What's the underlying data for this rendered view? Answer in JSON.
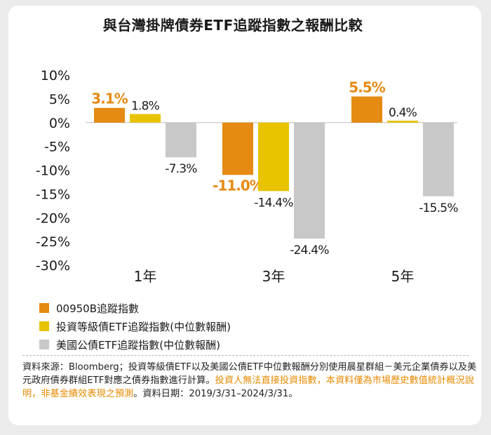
{
  "title": "與台灣掛牌債券ETF追蹤指數之報酬比較",
  "chart_data": {
    "type": "bar",
    "categories": [
      "1年",
      "3年",
      "5年"
    ],
    "ylim": [
      -30,
      10
    ],
    "yticks": [
      "10%",
      "5%",
      "0%",
      "-5%",
      "-10%",
      "-15%",
      "-20%",
      "-25%",
      "-30%"
    ],
    "ytick_values": [
      10,
      5,
      0,
      -5,
      -10,
      -15,
      -20,
      -25,
      -30
    ],
    "series": [
      {
        "name": "00950B追蹤指數",
        "color": "#e58a12",
        "values": [
          3.1,
          -11.0,
          5.5
        ],
        "labels": [
          "3.1%",
          "-11.0%",
          "5.5%"
        ],
        "highlight": true
      },
      {
        "name": "投資等級債ETF追蹤指數(中位數報酬)",
        "color": "#e8c300",
        "values": [
          1.8,
          -14.4,
          0.4
        ],
        "labels": [
          "1.8%",
          "-14.4%",
          "0.4%"
        ],
        "highlight": false
      },
      {
        "name": "美國公債ETF追蹤指數(中位數報酬)",
        "color": "#c8c8c8",
        "values": [
          -7.3,
          -24.4,
          -15.5
        ],
        "labels": [
          "-7.3%",
          "-24.4%",
          "-15.5%"
        ],
        "highlight": false
      }
    ]
  },
  "footnote": {
    "main": "資料來源：Bloomberg；投資等級債ETF以及美國公債ETF中位數報酬分別使用晨星群組－美元企業債券以及美元政府債券群組ETF對應之債券指數進行計算。",
    "warning": "投資人無法直接投資指數，本資料僅為市場歷史數值統計概況說明，非基金績效表現之預測",
    "date": "。資料日期：2019/3/31–2024/3/31。"
  }
}
